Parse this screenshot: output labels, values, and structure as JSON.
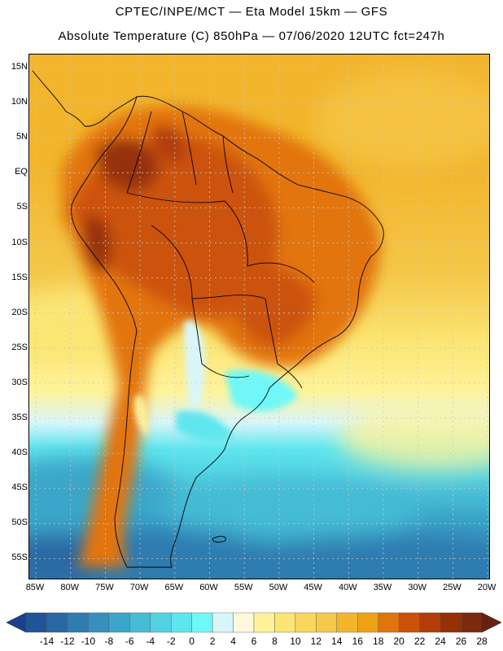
{
  "header": {
    "line1": "CPTEC/INPE/MCT —  Eta Model 15km — GFS",
    "line2": "Absolute Temperature (C) 850hPa — 07/06/2020 12UTC fct=247h"
  },
  "map": {
    "lat_labels": [
      "15N",
      "10N",
      "5N",
      "EQ",
      "5S",
      "10S",
      "15S",
      "20S",
      "25S",
      "30S",
      "35S",
      "40S",
      "45S",
      "50S",
      "55S"
    ],
    "lon_labels": [
      "85W",
      "80W",
      "75W",
      "70W",
      "65W",
      "60W",
      "55W",
      "50W",
      "45W",
      "40W",
      "35W",
      "30W",
      "25W",
      "20W"
    ]
  },
  "colorbar": {
    "labels": [
      "-14",
      "-12",
      "-10",
      "-8",
      "-6",
      "-4",
      "-2",
      "0",
      "2",
      "4",
      "6",
      "8",
      "10",
      "12",
      "14",
      "16",
      "18",
      "20",
      "22",
      "24",
      "26",
      "28"
    ],
    "colors": [
      "#1a3f8c",
      "#1f5597",
      "#2a68a3",
      "#2f7cb0",
      "#3590bd",
      "#3ba6c9",
      "#45bcd6",
      "#53d2e2",
      "#5ee6ee",
      "#6ff8f8",
      "#d8f6fa",
      "#fff8dc",
      "#fff39a",
      "#fbe674",
      "#f9d75c",
      "#f5c84a",
      "#f2b52c",
      "#eea314",
      "#e2740d",
      "#cc5208",
      "#b23d08",
      "#953007",
      "#7c2a0e",
      "#6a2010"
    ]
  }
}
